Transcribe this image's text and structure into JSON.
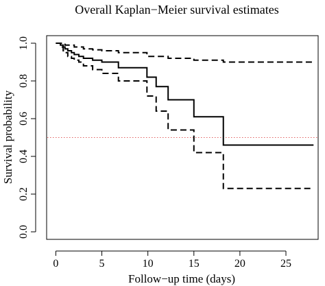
{
  "chart_data": {
    "type": "line",
    "title": "Overall Kaplan−Meier survival estimates",
    "xlabel": "Follow−up time (days)",
    "ylabel": "Survival probability",
    "xlim": [
      -1,
      28.5
    ],
    "ylim": [
      -0.04,
      1.04
    ],
    "xticks": [
      0,
      5,
      10,
      15,
      20,
      25
    ],
    "yticks": [
      0.0,
      0.2,
      0.4,
      0.6,
      0.8,
      1.0
    ],
    "xtick_labels": [
      "0",
      "5",
      "10",
      "15",
      "20",
      "25"
    ],
    "ytick_labels": [
      "0.0",
      "0.2",
      "0.4",
      "0.6",
      "0.8",
      "1.0"
    ],
    "grid": false,
    "legend": null,
    "reference_line": {
      "y": 0.5,
      "color": "#e06060",
      "style": "dotted"
    },
    "series": [
      {
        "role": "estimate",
        "line_style": "solid",
        "steps": [
          [
            0,
            1.0
          ],
          [
            0.5,
            0.99
          ],
          [
            0.8,
            0.98
          ],
          [
            1.0,
            0.97
          ],
          [
            1.3,
            0.96
          ],
          [
            1.7,
            0.95
          ],
          [
            2.0,
            0.94
          ],
          [
            2.5,
            0.93
          ],
          [
            3.0,
            0.92
          ],
          [
            4.0,
            0.91
          ],
          [
            5.0,
            0.9
          ],
          [
            6.8,
            0.87
          ],
          [
            9.9,
            0.82
          ],
          [
            10.9,
            0.77
          ],
          [
            12.2,
            0.7
          ],
          [
            15.0,
            0.61
          ],
          [
            18.2,
            0.46
          ],
          [
            28.0,
            0.46
          ]
        ]
      },
      {
        "role": "upper-ci",
        "line_style": "dashed",
        "steps": [
          [
            0,
            1.0
          ],
          [
            1.0,
            0.99
          ],
          [
            2.0,
            0.98
          ],
          [
            3.0,
            0.97
          ],
          [
            4.0,
            0.965
          ],
          [
            5.0,
            0.96
          ],
          [
            6.8,
            0.95
          ],
          [
            9.9,
            0.93
          ],
          [
            10.9,
            0.93
          ],
          [
            12.2,
            0.92
          ],
          [
            15.0,
            0.91
          ],
          [
            18.2,
            0.9
          ],
          [
            28.0,
            0.9
          ]
        ]
      },
      {
        "role": "lower-ci",
        "line_style": "dashed",
        "steps": [
          [
            0,
            1.0
          ],
          [
            0.5,
            0.98
          ],
          [
            0.8,
            0.96
          ],
          [
            1.0,
            0.95
          ],
          [
            1.3,
            0.93
          ],
          [
            1.7,
            0.92
          ],
          [
            2.0,
            0.91
          ],
          [
            2.5,
            0.9
          ],
          [
            3.0,
            0.88
          ],
          [
            4.0,
            0.86
          ],
          [
            5.0,
            0.84
          ],
          [
            6.8,
            0.8
          ],
          [
            9.9,
            0.72
          ],
          [
            10.9,
            0.64
          ],
          [
            12.2,
            0.54
          ],
          [
            15.0,
            0.42
          ],
          [
            18.2,
            0.23
          ],
          [
            28.0,
            0.23
          ]
        ]
      }
    ]
  }
}
